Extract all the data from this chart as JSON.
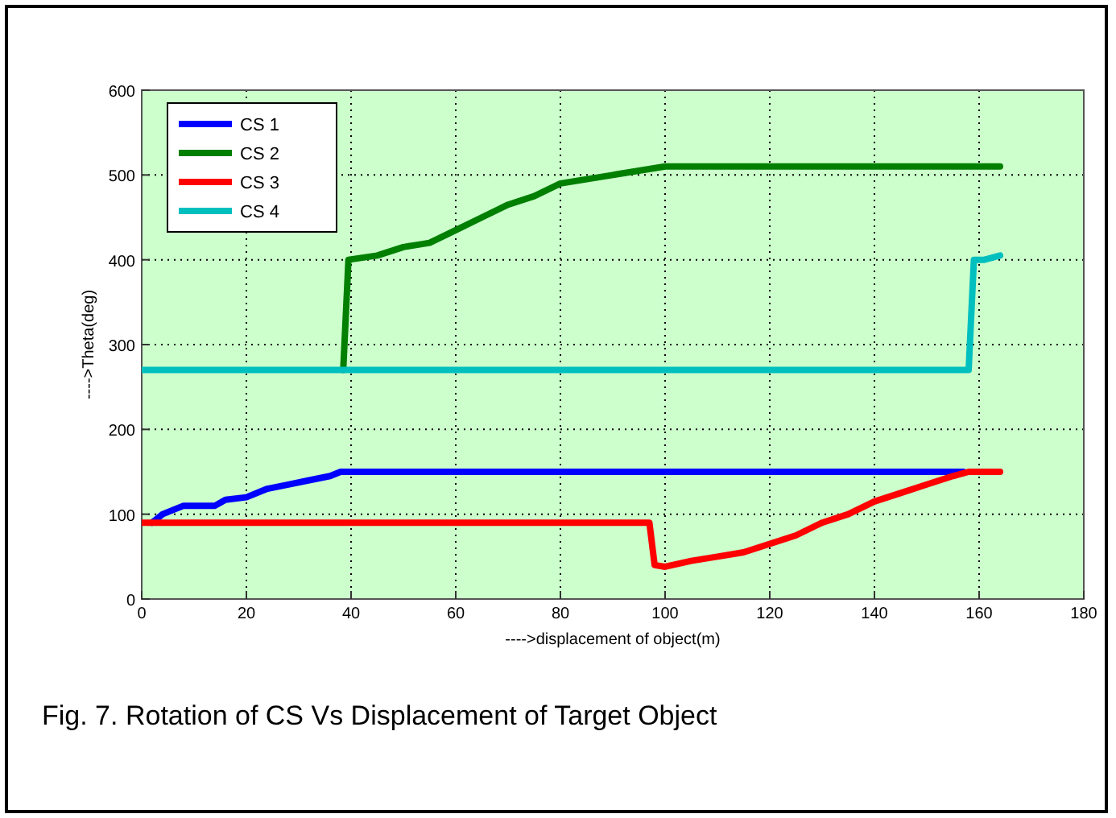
{
  "chart_data": {
    "type": "line",
    "xlabel": "---->displacement of object(m)",
    "ylabel": "---->Theta(deg)",
    "xlim": [
      0,
      180
    ],
    "xticks": [
      0,
      20,
      40,
      60,
      80,
      100,
      120,
      140,
      160,
      180
    ],
    "ylim": [
      0,
      600
    ],
    "yticks": [
      0,
      100,
      200,
      300,
      400,
      500,
      600
    ],
    "grid": true,
    "legend": "top left",
    "line_style": "solid",
    "marker": "none",
    "annotations": [
      "Fig. 7. Rotation of CS Vs Displacement of Target Object"
    ],
    "series": [
      {
        "name": "CS 1",
        "color": "#0000ff",
        "x": [
          2,
          4,
          6,
          8,
          14,
          16,
          20,
          24,
          28,
          32,
          36,
          38,
          157
        ],
        "values": [
          90,
          100,
          105,
          110,
          110,
          117,
          120,
          130,
          135,
          140,
          145,
          150,
          150
        ]
      },
      {
        "name": "CS 2",
        "color": "#007f00",
        "x": [
          38.5,
          39.5,
          45,
          50,
          55,
          60,
          65,
          70,
          75,
          80,
          85,
          90,
          95,
          100,
          164
        ],
        "values": [
          270,
          400,
          405,
          415,
          420,
          435,
          450,
          465,
          475,
          490,
          495,
          500,
          505,
          510,
          510
        ]
      },
      {
        "name": "CS 3",
        "color": "#ff0000",
        "x": [
          0,
          97,
          98,
          100,
          105,
          110,
          115,
          120,
          125,
          130,
          135,
          140,
          145,
          150,
          155,
          158,
          164
        ],
        "values": [
          90,
          90,
          40,
          38,
          45,
          50,
          55,
          65,
          75,
          90,
          100,
          115,
          125,
          135,
          145,
          150,
          150
        ]
      },
      {
        "name": "CS 4",
        "color": "#00bfbf",
        "x": [
          0,
          158,
          159,
          161,
          164
        ],
        "values": [
          270,
          270,
          400,
          400,
          405
        ]
      }
    ]
  }
}
